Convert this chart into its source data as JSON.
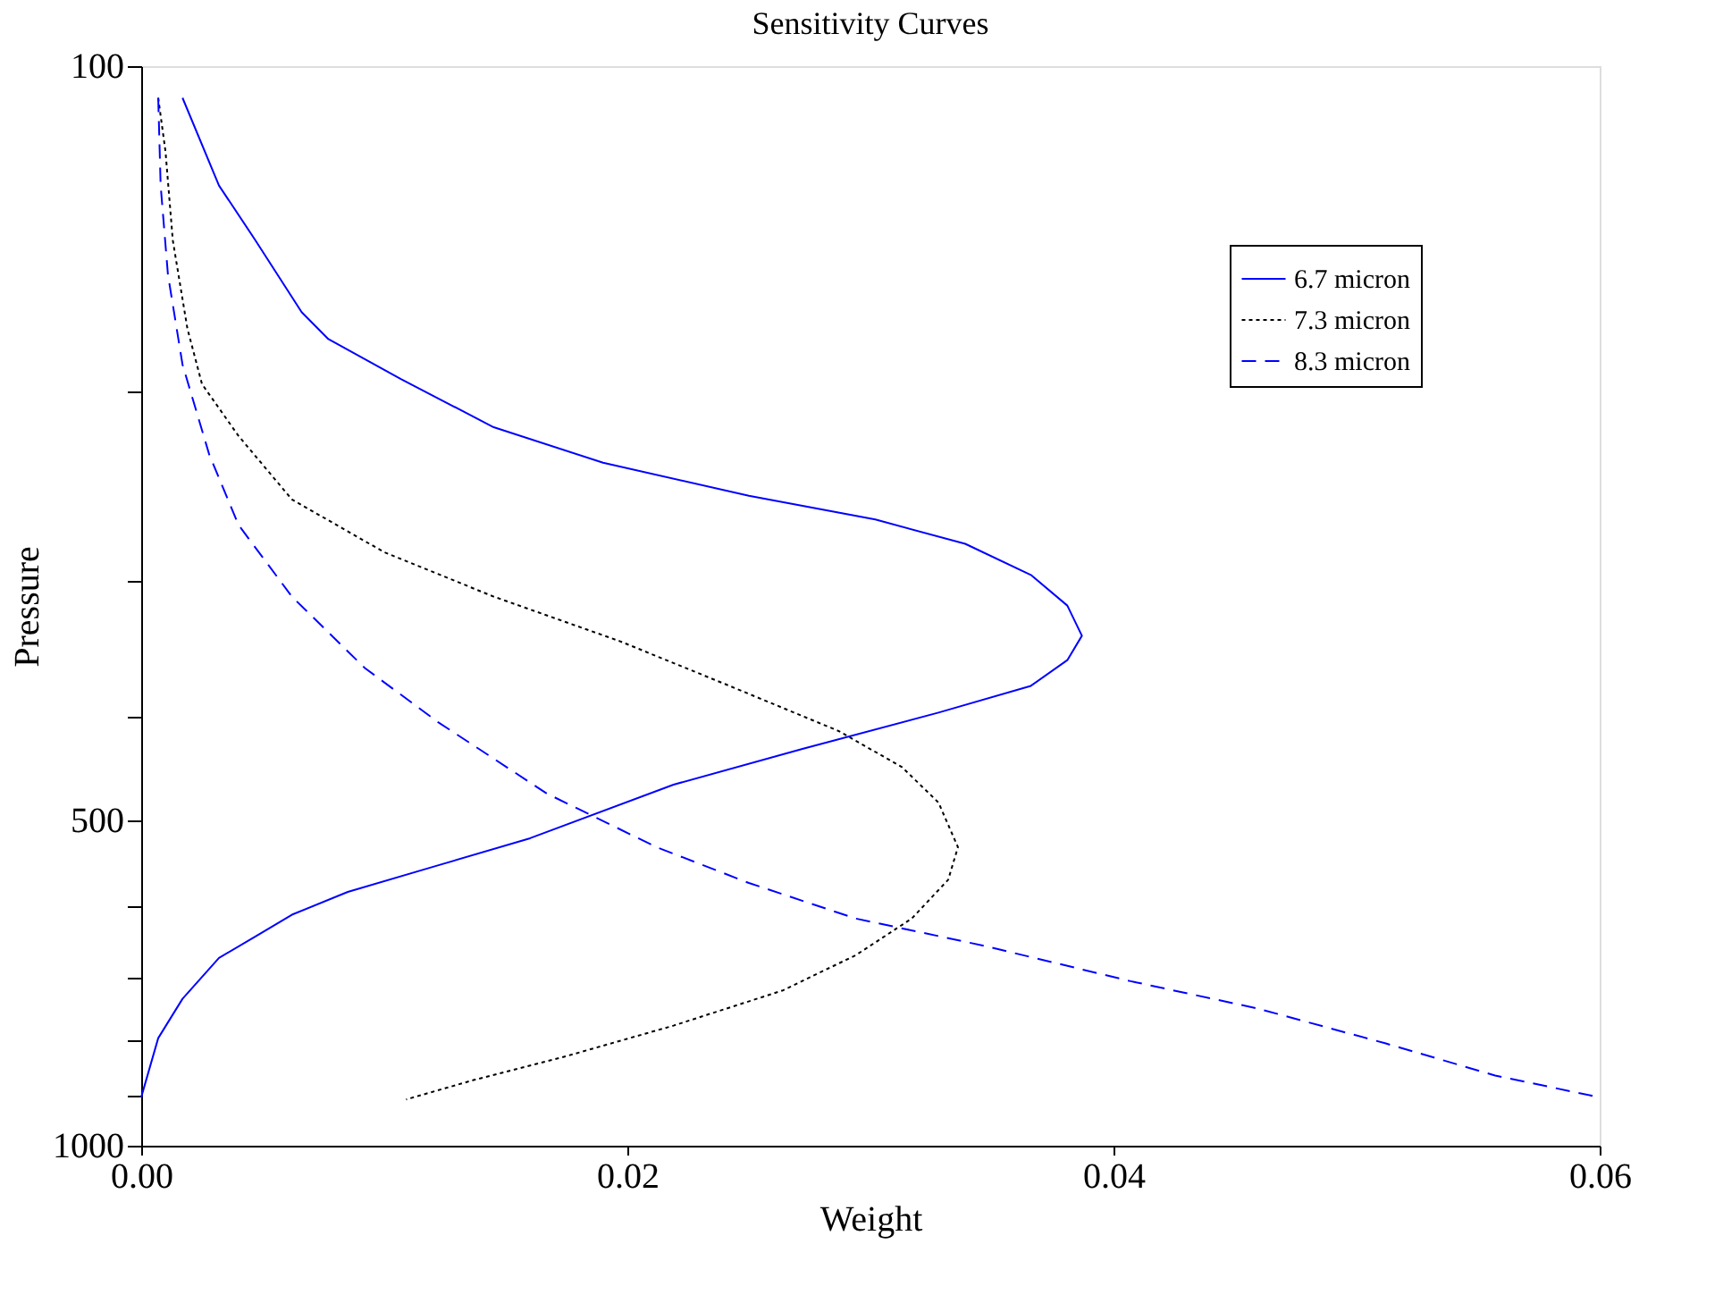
{
  "chart_data": {
    "type": "line",
    "title": "Sensitivity Curves",
    "xlabel": "Weight",
    "ylabel": "Pressure",
    "xlim": [
      0,
      0.06
    ],
    "xticks": [
      {
        "value": 0,
        "label": "0.00"
      },
      0.02,
      0.04,
      0.06
    ],
    "ylim": [
      1000,
      100
    ],
    "log": "y",
    "yticks": [
      100,
      {
        "value": 200,
        "label": null
      },
      {
        "value": 300,
        "label": null
      },
      {
        "value": 400,
        "label": null
      },
      500,
      {
        "value": 600,
        "label": null
      },
      {
        "value": 700,
        "label": null
      },
      {
        "value": 800,
        "label": null
      },
      {
        "value": 900,
        "label": null
      },
      1000
    ],
    "grid": false,
    "legend": "top right",
    "marker": "none",
    "series": [
      {
        "name": "6.7 micron",
        "color": "#0000ff",
        "line_style": "solid",
        "x": [
          0.0017,
          0.0032,
          0.0047,
          0.0066,
          0.0077,
          0.0107,
          0.0145,
          0.019,
          0.025,
          0.0302,
          0.0339,
          0.0366,
          0.0381,
          0.0387,
          0.0381,
          0.0366,
          0.0328,
          0.0272,
          0.0219,
          0.016,
          0.0122,
          0.0085,
          0.0062,
          0.0047,
          0.0032,
          0.0017,
          0.0007,
          0.0
        ],
        "values": [
          107,
          129,
          145,
          169,
          179,
          195,
          216,
          233,
          250,
          263,
          277,
          296,
          316,
          337,
          355,
          375,
          397,
          429,
          463,
          519,
          550,
          582,
          611,
          640,
          670,
          731,
          795,
          902
        ]
      },
      {
        "name": "7.3 micron",
        "color": "#000000",
        "line_style": "dotted",
        "x": [
          0.0007,
          0.001,
          0.0013,
          0.0019,
          0.0025,
          0.004,
          0.0062,
          0.01,
          0.0145,
          0.0197,
          0.0242,
          0.0287,
          0.0313,
          0.0328,
          0.0336,
          0.0332,
          0.0317,
          0.0294,
          0.0264,
          0.0219,
          0.0175,
          0.0137,
          0.0109
        ],
        "values": [
          107,
          120,
          145,
          175,
          197,
          220,
          252,
          282,
          310,
          341,
          375,
          413,
          446,
          481,
          529,
          567,
          616,
          666,
          718,
          774,
          826,
          869,
          906
        ]
      },
      {
        "name": "8.3 micron",
        "color": "#0000ff",
        "line_style": "dashed",
        "x": [
          0.0007,
          0.0008,
          0.0011,
          0.0017,
          0.0028,
          0.004,
          0.0062,
          0.0092,
          0.0122,
          0.0167,
          0.0212,
          0.025,
          0.0294,
          0.0347,
          0.0407,
          0.0459,
          0.0512,
          0.0557,
          0.06
        ],
        "values": [
          107,
          129,
          156,
          189,
          229,
          266,
          310,
          361,
          405,
          472,
          529,
          571,
          616,
          653,
          704,
          746,
          804,
          861,
          902
        ]
      }
    ]
  }
}
